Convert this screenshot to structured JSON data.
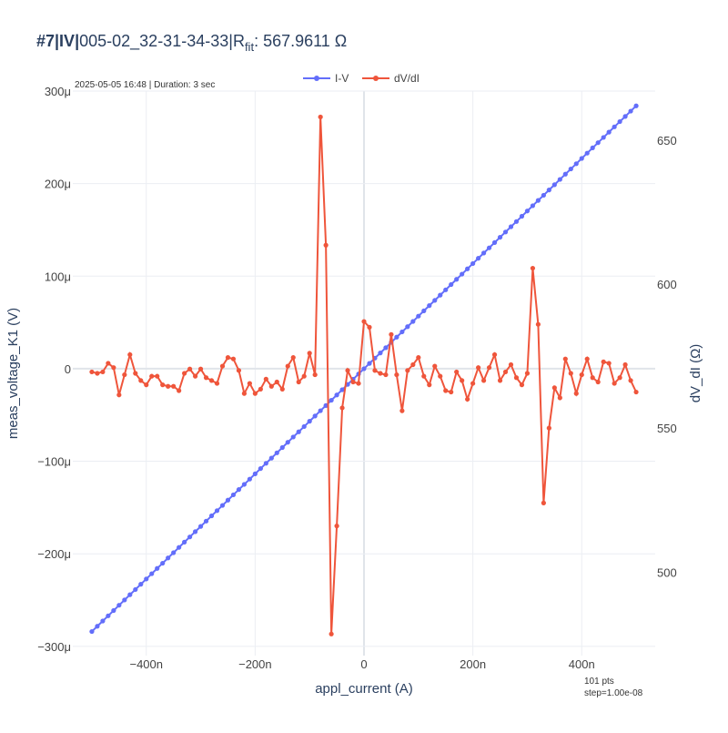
{
  "colors": {
    "iv": "#636efa",
    "dvdi": "#ef553b",
    "grid": "#ebeef3",
    "zero": "#e0e4ea"
  },
  "chart_data": {
    "type": "line",
    "title": {
      "prefix": "#7|IV|",
      "run": "005-02_32-31-34-33",
      "rfit_symbol": "R",
      "rfit_subscript": "fit",
      "rfit_value": ": 567.9611 Ω"
    },
    "subtitle": "2025-05-05 16:48 | Duration: 3 sec",
    "xlabel": "appl_current (A)",
    "ylabel_left": "meas_voltage_K1 (V)",
    "ylabel_right": "dV_dI (Ω)",
    "xlim": [
      -5.35e-07,
      5.35e-07
    ],
    "ylim_left": [
      -0.00031,
      0.0003
    ],
    "ylim_right": [
      471,
      667
    ],
    "x_ticks": [
      -4e-07,
      -2e-07,
      0,
      2e-07,
      4e-07
    ],
    "x_tick_labels": [
      "−400n",
      "−200n",
      "0",
      "200n",
      "400n"
    ],
    "y_left_ticks": [
      -0.0003,
      -0.0002,
      -0.0001,
      0,
      0.0001,
      0.0002,
      0.0003
    ],
    "y_left_tick_labels": [
      "−300μ",
      "−200μ",
      "−100μ",
      "0",
      "100μ",
      "200μ",
      "300μ"
    ],
    "y_right_ticks": [
      500,
      550,
      600,
      650
    ],
    "y_right_tick_labels": [
      "500",
      "550",
      "600",
      "650"
    ],
    "grid": true,
    "legend_position": "top-center",
    "footnote": [
      "101 pts",
      "step=1.00e-08"
    ],
    "x": [
      -5e-07,
      -4.9e-07,
      -4.8e-07,
      -4.7e-07,
      -4.6e-07,
      -4.5e-07,
      -4.4e-07,
      -4.3e-07,
      -4.2e-07,
      -4.1e-07,
      -4e-07,
      -3.9e-07,
      -3.8e-07,
      -3.7e-07,
      -3.6e-07,
      -3.5e-07,
      -3.4e-07,
      -3.3e-07,
      -3.2e-07,
      -3.1e-07,
      -3e-07,
      -2.9e-07,
      -2.8e-07,
      -2.7e-07,
      -2.6e-07,
      -2.5e-07,
      -2.4e-07,
      -2.3e-07,
      -2.2e-07,
      -2.1e-07,
      -2e-07,
      -1.9e-07,
      -1.8e-07,
      -1.7e-07,
      -1.6e-07,
      -1.5e-07,
      -1.4e-07,
      -1.3e-07,
      -1.2e-07,
      -1.1e-07,
      -1e-07,
      -9e-08,
      -8e-08,
      -7e-08,
      -6e-08,
      -5e-08,
      -4e-08,
      -3e-08,
      -2e-08,
      -1e-08,
      0,
      1e-08,
      2e-08,
      3e-08,
      4e-08,
      5e-08,
      6e-08,
      7e-08,
      8e-08,
      9e-08,
      1e-07,
      1.1e-07,
      1.2e-07,
      1.3e-07,
      1.4e-07,
      1.5e-07,
      1.6e-07,
      1.7e-07,
      1.8e-07,
      1.9e-07,
      2e-07,
      2.1e-07,
      2.2e-07,
      2.3e-07,
      2.4e-07,
      2.5e-07,
      2.6e-07,
      2.7e-07,
      2.8e-07,
      2.9e-07,
      3e-07,
      3.1e-07,
      3.2e-07,
      3.3e-07,
      3.4e-07,
      3.5e-07,
      3.6e-07,
      3.7e-07,
      3.8e-07,
      3.9e-07,
      4e-07,
      4.1e-07,
      4.2e-07,
      4.3e-07,
      4.4e-07,
      4.5e-07,
      4.6e-07,
      4.7e-07,
      4.8e-07,
      4.9e-07,
      5e-07
    ],
    "series": [
      {
        "name": "I-V",
        "axis": "left",
        "color": "#636efa",
        "values": [
          -0.000284,
          -0.0002783,
          -0.0002726,
          -0.000267,
          -0.0002613,
          -0.0002556,
          -0.0002499,
          -0.0002442,
          -0.0002386,
          -0.0002329,
          -0.0002272,
          -0.0002215,
          -0.0002158,
          -0.0002102,
          -0.0002045,
          -0.0001988,
          -0.0001931,
          -0.0001874,
          -0.0001818,
          -0.0001761,
          -0.0001704,
          -0.0001647,
          -0.000159,
          -0.0001534,
          -0.0001477,
          -0.000142,
          -0.0001363,
          -0.0001306,
          -0.000125,
          -0.0001193,
          -0.0001136,
          -0.0001079,
          -0.0001022,
          -9.66e-05,
          -9.09e-05,
          -8.52e-05,
          -7.95e-05,
          -7.38e-05,
          -6.82e-05,
          -6.25e-05,
          -5.68e-05,
          -5.11e-05,
          -4.54e-05,
          -3.98e-05,
          -3.41e-05,
          -2.84e-05,
          -2.27e-05,
          -1.7e-05,
          -1.14e-05,
          -5.7e-06,
          0,
          5.7e-06,
          1.14e-05,
          1.7e-05,
          2.27e-05,
          2.84e-05,
          3.41e-05,
          3.98e-05,
          4.54e-05,
          5.11e-05,
          5.68e-05,
          6.25e-05,
          6.82e-05,
          7.38e-05,
          7.95e-05,
          8.52e-05,
          9.09e-05,
          9.66e-05,
          0.0001022,
          0.0001079,
          0.0001136,
          0.0001193,
          0.000125,
          0.0001306,
          0.0001363,
          0.000142,
          0.0001477,
          0.0001534,
          0.000159,
          0.0001647,
          0.0001704,
          0.0001761,
          0.0001818,
          0.0001874,
          0.0001931,
          0.0001988,
          0.0002045,
          0.0002102,
          0.0002158,
          0.0002215,
          0.0002272,
          0.0002329,
          0.0002386,
          0.0002442,
          0.0002499,
          0.0002556,
          0.0002613,
          0.000267,
          0.0002726,
          0.0002783,
          0.000284
        ]
      },
      {
        "name": "dV/dI",
        "axis": "right",
        "color": "#ef553b",
        "values": [
          569.5,
          569.0,
          569.5,
          572.5,
          571.0,
          561.5,
          568.5,
          575.5,
          569.0,
          566.5,
          565.0,
          568.0,
          568.0,
          565.0,
          564.5,
          564.5,
          563.0,
          569.0,
          570.5,
          568.0,
          570.5,
          567.5,
          566.5,
          565.5,
          571.5,
          574.5,
          574.0,
          570.0,
          562.0,
          565.5,
          562.0,
          563.5,
          567.0,
          564.5,
          566.0,
          563.5,
          571.5,
          574.5,
          566.0,
          568.0,
          576.0,
          568.5,
          658.0,
          613.5,
          478.5,
          516.0,
          557.0,
          570.0,
          566.0,
          565.5,
          587.0,
          585.0,
          570.0,
          569.0,
          568.5,
          582.5,
          568.5,
          556.0,
          570.0,
          572.0,
          574.5,
          568.0,
          565.0,
          571.5,
          568.0,
          563.0,
          562.5,
          569.5,
          566.5,
          560.0,
          565.5,
          571.0,
          566.5,
          571.0,
          575.5,
          566.5,
          569.5,
          572.0,
          567.5,
          565.0,
          569.0,
          605.5,
          586.0,
          524.0,
          550.0,
          564.0,
          560.5,
          574.0,
          569.0,
          562.0,
          568.5,
          574.0,
          567.5,
          566.0,
          573.0,
          572.5,
          565.5,
          567.5,
          572.0,
          566.5,
          562.5
        ]
      }
    ]
  }
}
